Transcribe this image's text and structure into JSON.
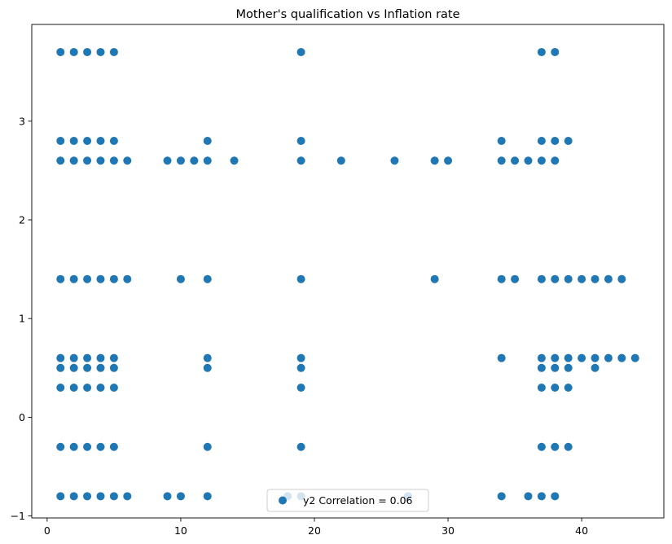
{
  "chart_data": {
    "type": "scatter",
    "title": "Mother's qualification vs Inflation rate",
    "xlabel": "",
    "ylabel": "",
    "xlim": [
      -1.15,
      46.15
    ],
    "ylim": [
      -1.02,
      3.98
    ],
    "x_ticks": [
      0,
      10,
      20,
      30,
      40
    ],
    "y_ticks": [
      -1,
      0,
      1,
      2,
      3
    ],
    "grid": false,
    "legend_position": "bottom-center",
    "color": "#1f77b4",
    "series": [
      {
        "name": "y2 Correlation = 0.06",
        "points": [
          [
            1,
            3.7
          ],
          [
            2,
            3.7
          ],
          [
            3,
            3.7
          ],
          [
            4,
            3.7
          ],
          [
            5,
            3.7
          ],
          [
            19,
            3.7
          ],
          [
            37,
            3.7
          ],
          [
            38,
            3.7
          ],
          [
            1,
            2.8
          ],
          [
            2,
            2.8
          ],
          [
            3,
            2.8
          ],
          [
            4,
            2.8
          ],
          [
            5,
            2.8
          ],
          [
            12,
            2.8
          ],
          [
            19,
            2.8
          ],
          [
            34,
            2.8
          ],
          [
            37,
            2.8
          ],
          [
            38,
            2.8
          ],
          [
            39,
            2.8
          ],
          [
            1,
            2.6
          ],
          [
            2,
            2.6
          ],
          [
            3,
            2.6
          ],
          [
            4,
            2.6
          ],
          [
            5,
            2.6
          ],
          [
            6,
            2.6
          ],
          [
            9,
            2.6
          ],
          [
            10,
            2.6
          ],
          [
            11,
            2.6
          ],
          [
            12,
            2.6
          ],
          [
            14,
            2.6
          ],
          [
            19,
            2.6
          ],
          [
            22,
            2.6
          ],
          [
            26,
            2.6
          ],
          [
            29,
            2.6
          ],
          [
            30,
            2.6
          ],
          [
            34,
            2.6
          ],
          [
            35,
            2.6
          ],
          [
            36,
            2.6
          ],
          [
            37,
            2.6
          ],
          [
            38,
            2.6
          ],
          [
            1,
            1.4
          ],
          [
            2,
            1.4
          ],
          [
            3,
            1.4
          ],
          [
            4,
            1.4
          ],
          [
            5,
            1.4
          ],
          [
            6,
            1.4
          ],
          [
            10,
            1.4
          ],
          [
            12,
            1.4
          ],
          [
            19,
            1.4
          ],
          [
            29,
            1.4
          ],
          [
            34,
            1.4
          ],
          [
            35,
            1.4
          ],
          [
            37,
            1.4
          ],
          [
            38,
            1.4
          ],
          [
            39,
            1.4
          ],
          [
            40,
            1.4
          ],
          [
            41,
            1.4
          ],
          [
            42,
            1.4
          ],
          [
            43,
            1.4
          ],
          [
            1,
            0.6
          ],
          [
            2,
            0.6
          ],
          [
            3,
            0.6
          ],
          [
            4,
            0.6
          ],
          [
            5,
            0.6
          ],
          [
            12,
            0.6
          ],
          [
            19,
            0.6
          ],
          [
            34,
            0.6
          ],
          [
            37,
            0.6
          ],
          [
            38,
            0.6
          ],
          [
            39,
            0.6
          ],
          [
            40,
            0.6
          ],
          [
            41,
            0.6
          ],
          [
            42,
            0.6
          ],
          [
            43,
            0.6
          ],
          [
            44,
            0.6
          ],
          [
            1,
            0.5
          ],
          [
            2,
            0.5
          ],
          [
            3,
            0.5
          ],
          [
            4,
            0.5
          ],
          [
            5,
            0.5
          ],
          [
            12,
            0.5
          ],
          [
            19,
            0.5
          ],
          [
            37,
            0.5
          ],
          [
            38,
            0.5
          ],
          [
            39,
            0.5
          ],
          [
            41,
            0.5
          ],
          [
            1,
            0.3
          ],
          [
            2,
            0.3
          ],
          [
            3,
            0.3
          ],
          [
            4,
            0.3
          ],
          [
            5,
            0.3
          ],
          [
            19,
            0.3
          ],
          [
            37,
            0.3
          ],
          [
            38,
            0.3
          ],
          [
            39,
            0.3
          ],
          [
            1,
            -0.3
          ],
          [
            2,
            -0.3
          ],
          [
            3,
            -0.3
          ],
          [
            4,
            -0.3
          ],
          [
            5,
            -0.3
          ],
          [
            12,
            -0.3
          ],
          [
            19,
            -0.3
          ],
          [
            37,
            -0.3
          ],
          [
            38,
            -0.3
          ],
          [
            39,
            -0.3
          ],
          [
            1,
            -0.8
          ],
          [
            2,
            -0.8
          ],
          [
            3,
            -0.8
          ],
          [
            4,
            -0.8
          ],
          [
            5,
            -0.8
          ],
          [
            6,
            -0.8
          ],
          [
            9,
            -0.8
          ],
          [
            10,
            -0.8
          ],
          [
            12,
            -0.8
          ],
          [
            18,
            -0.8
          ],
          [
            19,
            -0.8
          ],
          [
            27,
            -0.8
          ],
          [
            34,
            -0.8
          ],
          [
            36,
            -0.8
          ],
          [
            37,
            -0.8
          ],
          [
            38,
            -0.8
          ]
        ]
      }
    ]
  }
}
